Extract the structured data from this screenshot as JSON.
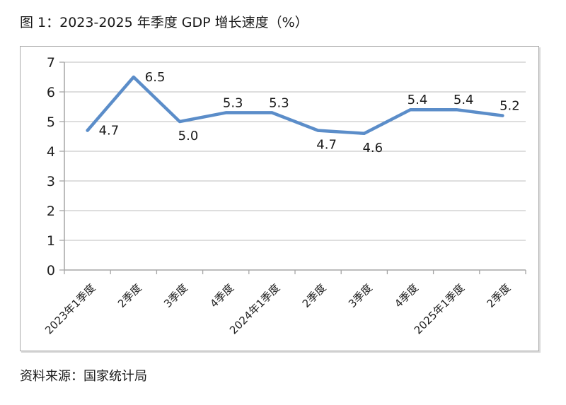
{
  "page": {
    "title": "图 1：2023-2025 年季度 GDP 增长速度（%）",
    "source": "资料来源：国家统计局"
  },
  "chart_data": {
    "type": "line",
    "title": "图 1：2023-2025 年季度 GDP 增长速度（%）",
    "categories": [
      "2023年1季度",
      "2季度",
      "3季度",
      "4季度",
      "2024年1季度",
      "2季度",
      "3季度",
      "4季度",
      "2025年1季度",
      "2季度"
    ],
    "series": [
      {
        "name": "季度GDP增长速度",
        "values": [
          4.7,
          6.5,
          5.0,
          5.3,
          5.3,
          4.7,
          4.6,
          5.4,
          5.4,
          5.2
        ]
      }
    ],
    "data_labels": [
      "4.7",
      "6.5",
      "5.0",
      "5.3",
      "5.3",
      "4.7",
      "4.6",
      "5.4",
      "5.4",
      "5.2"
    ],
    "label_positions": [
      "right",
      "right",
      "below",
      "above",
      "above",
      "below",
      "below",
      "above",
      "above",
      "above"
    ],
    "xlabel": "",
    "ylabel": "",
    "ylim": [
      0,
      7
    ],
    "ytick_step": 1,
    "yticks": [
      "0",
      "1",
      "2",
      "3",
      "4",
      "5",
      "6",
      "7"
    ],
    "x_tick_rotation": -45,
    "grid": "horizontal",
    "legend": "none",
    "colors": {
      "line": "#5b8dc9",
      "gridline": "#c9c9c9",
      "axis": "#a6a6a6",
      "tick_label": "#1f1f1f",
      "data_label": "#1a1a1a"
    },
    "source": "资料来源：国家统计局"
  }
}
